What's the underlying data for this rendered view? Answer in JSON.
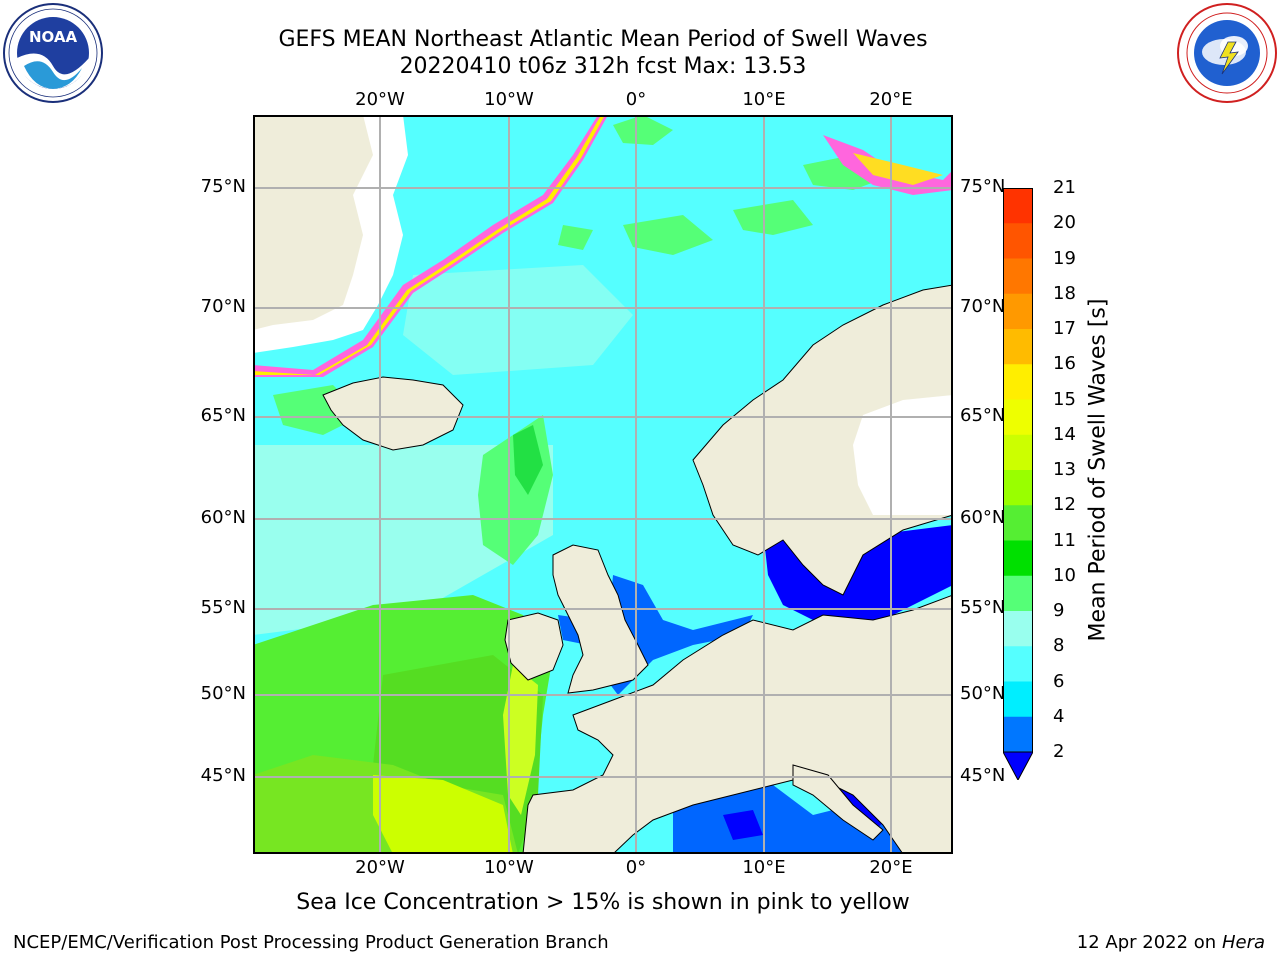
{
  "header": {
    "title_line1": "GEFS MEAN Northeast Atlantic Mean Period of Swell Waves",
    "title_line2": "20220410 t06z 312h fcst   Max: 13.53"
  },
  "logos": {
    "left": "NOAA",
    "right": "NATIONAL WEATHER SERVICE"
  },
  "axes": {
    "lon_labels": [
      "20°W",
      "10°W",
      "0°",
      "10°E",
      "20°E"
    ],
    "lat_labels": [
      "75°N",
      "70°N",
      "65°N",
      "60°N",
      "55°N",
      "50°N",
      "45°N"
    ]
  },
  "colorbar": {
    "title": "Mean Period of Swell Waves [s]",
    "ticks": [
      "21",
      "20",
      "19",
      "18",
      "17",
      "16",
      "15",
      "14",
      "13",
      "12",
      "11",
      "10",
      "9",
      "8",
      "6",
      "4",
      "2"
    ],
    "colors": [
      "#ff0000",
      "#ff3300",
      "#ff5500",
      "#ff7700",
      "#ff9900",
      "#ffbb00",
      "#ffee00",
      "#eeff00",
      "#ccff00",
      "#99ff00",
      "#55ee33",
      "#00e000",
      "#55ff77",
      "#99ffee",
      "#55ffff",
      "#00eeff",
      "#0077ff",
      "#0000ff"
    ]
  },
  "note": "Sea Ice Concentration > 15% is shown in pink to yellow",
  "footer": {
    "left": "NCEP/EMC/Verification Post Processing Product Generation Branch",
    "date": "12 Apr 2022 on ",
    "machine": "Hera"
  }
}
